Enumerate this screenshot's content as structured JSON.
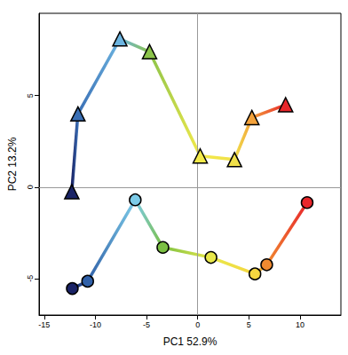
{
  "chart_data": {
    "type": "scatter",
    "x_label": "PC1 52.9%",
    "y_label": "PC2 13.2%",
    "xlim": [
      -15.5,
      14
    ],
    "ylim": [
      -7,
      9.5
    ],
    "xticks": [
      -15,
      -10,
      -5,
      0,
      5,
      10
    ],
    "yticks": [
      -5,
      0,
      5
    ],
    "grid": false,
    "series": [
      {
        "marker": "triangle",
        "line_style": "solid",
        "x": [
          -12.3,
          -11.7,
          -7.6,
          -4.7,
          0.25,
          3.6,
          5.3,
          8.6
        ],
        "values": [
          -0.25,
          4.0,
          8.1,
          7.4,
          1.7,
          1.5,
          3.8,
          4.5
        ],
        "colors": [
          "#1a2366",
          "#3a6fb5",
          "#6cb4e0",
          "#8bc34a",
          "#f3ea4a",
          "#f0e04a",
          "#f3a23c",
          "#e8262b"
        ]
      },
      {
        "marker": "circle",
        "line_style": "solid",
        "x": [
          -12.25,
          -10.75,
          -6.1,
          -3.4,
          1.3,
          5.6,
          6.75,
          10.7
        ],
        "values": [
          -5.55,
          -5.15,
          -0.7,
          -3.3,
          -3.85,
          -4.75,
          -4.25,
          -0.85
        ],
        "colors": [
          "#1a2366",
          "#3060a8",
          "#7ccbe8",
          "#7bc043",
          "#e8e84a",
          "#f5d640",
          "#f08a30",
          "#e8262b"
        ]
      }
    ]
  }
}
